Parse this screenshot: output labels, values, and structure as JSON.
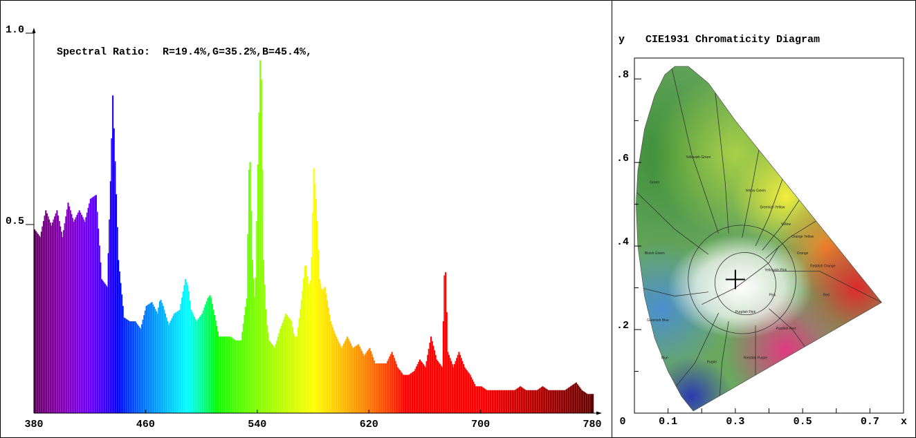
{
  "chart_data": [
    {
      "type": "area",
      "title": "Spectral Ratio:  R=19.4%,G=35.2%,B=45.4%,",
      "xlabel": "",
      "ylabel": "",
      "xlim": [
        380,
        780
      ],
      "ylim": [
        0,
        1.0
      ],
      "x_ticks": [
        "380",
        "460",
        "540",
        "620",
        "700",
        "780"
      ],
      "y_ticks": [
        {
          "value": 1.0,
          "label": "1.0"
        },
        {
          "value": 0.5,
          "label": "0.5"
        }
      ],
      "grid": false,
      "series": [
        {
          "x": [
            380,
            384,
            388,
            392,
            396,
            400,
            404,
            408,
            412,
            416,
            420,
            424,
            428,
            432,
            434,
            436,
            440,
            444,
            448,
            452,
            456,
            460,
            464,
            468,
            470,
            472,
            476,
            480,
            484,
            488,
            490,
            492,
            496,
            500,
            504,
            506,
            508,
            512,
            516,
            520,
            524,
            528,
            532,
            534,
            536,
            538,
            540,
            542,
            544,
            546,
            548,
            552,
            556,
            560,
            564,
            566,
            568,
            572,
            574,
            576,
            578,
            580,
            582,
            584,
            586,
            588,
            592,
            596,
            600,
            604,
            608,
            612,
            616,
            620,
            624,
            628,
            632,
            636,
            640,
            644,
            648,
            652,
            656,
            658,
            660,
            664,
            668,
            672,
            674,
            676,
            680,
            684,
            686,
            688,
            692,
            696,
            700,
            704,
            708,
            712,
            716,
            720,
            724,
            728,
            732,
            736,
            740,
            744,
            748,
            752,
            756,
            760,
            764,
            768,
            772,
            776,
            780
          ],
          "values": [
            0.48,
            0.46,
            0.53,
            0.49,
            0.53,
            0.46,
            0.55,
            0.5,
            0.53,
            0.5,
            0.56,
            0.57,
            0.35,
            0.33,
            0.55,
            0.83,
            0.4,
            0.25,
            0.24,
            0.24,
            0.22,
            0.28,
            0.29,
            0.26,
            0.3,
            0.28,
            0.23,
            0.26,
            0.27,
            0.35,
            0.33,
            0.27,
            0.24,
            0.26,
            0.3,
            0.31,
            0.27,
            0.2,
            0.2,
            0.2,
            0.19,
            0.19,
            0.3,
            0.72,
            0.4,
            0.28,
            0.65,
            0.99,
            0.4,
            0.24,
            0.19,
            0.17,
            0.22,
            0.26,
            0.24,
            0.2,
            0.2,
            0.32,
            0.4,
            0.33,
            0.35,
            0.64,
            0.54,
            0.35,
            0.32,
            0.33,
            0.24,
            0.2,
            0.17,
            0.2,
            0.17,
            0.18,
            0.15,
            0.17,
            0.13,
            0.13,
            0.13,
            0.16,
            0.12,
            0.1,
            0.1,
            0.11,
            0.14,
            0.13,
            0.12,
            0.2,
            0.14,
            0.12,
            0.42,
            0.16,
            0.12,
            0.16,
            0.14,
            0.12,
            0.1,
            0.07,
            0.07,
            0.06,
            0.06,
            0.06,
            0.06,
            0.06,
            0.06,
            0.07,
            0.06,
            0.06,
            0.06,
            0.07,
            0.06,
            0.06,
            0.06,
            0.06,
            0.07,
            0.08,
            0.06,
            0.05,
            0.05
          ]
        }
      ]
    },
    {
      "type": "scatter",
      "title": "CIE1931 Chromaticity Diagram",
      "xlabel": "x",
      "ylabel": "y",
      "xlim": [
        0,
        0.8
      ],
      "ylim": [
        0,
        0.85
      ],
      "x_ticks": [
        "0",
        "0.1",
        "0.3",
        "0.5",
        "0.7"
      ],
      "y_ticks": [
        ".2",
        ".4",
        ".6",
        ".8"
      ],
      "marker": {
        "x": 0.3,
        "y": 0.32
      },
      "regions": [
        "Yellowish Green",
        "Green",
        "Yellow Green",
        "Greenish Yellow",
        "Yellow",
        "Orange Yellow",
        "Orange",
        "Bluish Green",
        "Yellowish Pink",
        "Reddish Orange",
        "Pink",
        "Red",
        "Greenish Blue",
        "Purplish Pink",
        "Purplish Red",
        "Blue",
        "Purple",
        "Reddish Purple"
      ]
    }
  ]
}
